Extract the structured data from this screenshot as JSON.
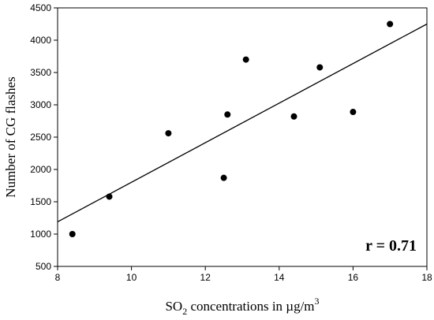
{
  "chart_data": {
    "type": "scatter",
    "title": "",
    "xlabel": {
      "prefix": "SO",
      "subscript": "2",
      "middle": " concentrations in µg/m",
      "superscript": "3"
    },
    "ylabel": "Number of CG flashes",
    "xlim": [
      8,
      18
    ],
    "ylim": [
      500,
      4500
    ],
    "xticks": [
      8,
      10,
      12,
      14,
      16,
      18
    ],
    "yticks": [
      500,
      1000,
      1500,
      2000,
      2500,
      3000,
      3500,
      4000,
      4500
    ],
    "grid": false,
    "points": [
      {
        "x": 8.4,
        "y": 1000
      },
      {
        "x": 9.4,
        "y": 1580
      },
      {
        "x": 11.0,
        "y": 2560
      },
      {
        "x": 12.5,
        "y": 1870
      },
      {
        "x": 12.6,
        "y": 2850
      },
      {
        "x": 13.1,
        "y": 3700
      },
      {
        "x": 14.4,
        "y": 2820
      },
      {
        "x": 15.1,
        "y": 3580
      },
      {
        "x": 16.0,
        "y": 2890
      },
      {
        "x": 17.0,
        "y": 4250
      }
    ],
    "fit_line": {
      "x": [
        8,
        18
      ],
      "y": [
        1190,
        4250
      ]
    },
    "annotation": "r = 0.71",
    "colors": {
      "marker": "#000000",
      "line": "#000000"
    }
  }
}
